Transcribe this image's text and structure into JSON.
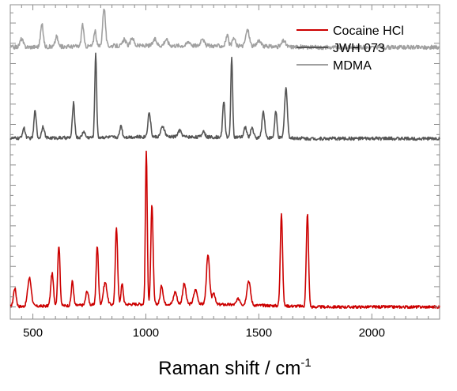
{
  "chart_data": {
    "type": "line",
    "xlabel": "Raman shift / cm",
    "xlabel_sup": "-1",
    "ylabel": "",
    "xlim": [
      400,
      2300
    ],
    "x_ticks": [
      500,
      1000,
      1500,
      2000
    ],
    "y_axis_tick_labels": "none",
    "stacked_offset": true,
    "grid": false,
    "legend": {
      "placement": "top-right"
    },
    "series": [
      {
        "name": "Cocaine HCl",
        "color": "#cc0000",
        "baseline": 0,
        "noise": 0.07,
        "peaks": [
          [
            420,
            0.9,
            6
          ],
          [
            485,
            1.4,
            8
          ],
          [
            585,
            1.6,
            6
          ],
          [
            615,
            3.0,
            5
          ],
          [
            675,
            1.2,
            5
          ],
          [
            740,
            0.7,
            6
          ],
          [
            785,
            2.9,
            5
          ],
          [
            820,
            1.1,
            8
          ],
          [
            870,
            3.8,
            5
          ],
          [
            895,
            1.0,
            5
          ],
          [
            1002,
            7.6,
            4
          ],
          [
            1027,
            4.9,
            5
          ],
          [
            1070,
            0.9,
            6
          ],
          [
            1130,
            0.6,
            7
          ],
          [
            1170,
            1.0,
            7
          ],
          [
            1220,
            0.7,
            8
          ],
          [
            1275,
            2.4,
            7
          ],
          [
            1300,
            0.6,
            6
          ],
          [
            1410,
            0.3,
            8
          ],
          [
            1455,
            1.2,
            8
          ],
          [
            1600,
            4.6,
            5
          ],
          [
            1715,
            4.6,
            5
          ]
        ]
      },
      {
        "name": "JWH 073",
        "color": "#555555",
        "baseline": 8.3,
        "noise": 0.08,
        "peaks": [
          [
            460,
            0.5,
            6
          ],
          [
            510,
            1.4,
            5
          ],
          [
            545,
            0.6,
            6
          ],
          [
            680,
            1.7,
            5
          ],
          [
            725,
            0.3,
            6
          ],
          [
            778,
            4.2,
            4
          ],
          [
            890,
            0.6,
            5
          ],
          [
            1015,
            1.2,
            6
          ],
          [
            1075,
            0.5,
            8
          ],
          [
            1150,
            0.3,
            8
          ],
          [
            1255,
            0.3,
            6
          ],
          [
            1345,
            1.8,
            5
          ],
          [
            1380,
            4.0,
            4
          ],
          [
            1440,
            0.5,
            6
          ],
          [
            1470,
            0.5,
            6
          ],
          [
            1520,
            1.3,
            6
          ],
          [
            1575,
            1.3,
            5
          ],
          [
            1620,
            2.5,
            6
          ]
        ]
      },
      {
        "name": "MDMA",
        "color": "#a0a0a0",
        "baseline": 12.8,
        "noise": 0.1,
        "peaks": [
          [
            450,
            0.4,
            7
          ],
          [
            540,
            1.1,
            6
          ],
          [
            605,
            0.5,
            6
          ],
          [
            720,
            1.1,
            5
          ],
          [
            775,
            0.8,
            5
          ],
          [
            815,
            1.9,
            6
          ],
          [
            905,
            0.3,
            7
          ],
          [
            940,
            0.4,
            7
          ],
          [
            1040,
            0.3,
            8
          ],
          [
            1090,
            0.3,
            8
          ],
          [
            1190,
            0.2,
            8
          ],
          [
            1250,
            0.4,
            7
          ],
          [
            1360,
            0.5,
            6
          ],
          [
            1390,
            0.4,
            6
          ],
          [
            1450,
            0.8,
            8
          ],
          [
            1500,
            0.3,
            8
          ],
          [
            1610,
            0.3,
            8
          ]
        ]
      }
    ]
  }
}
